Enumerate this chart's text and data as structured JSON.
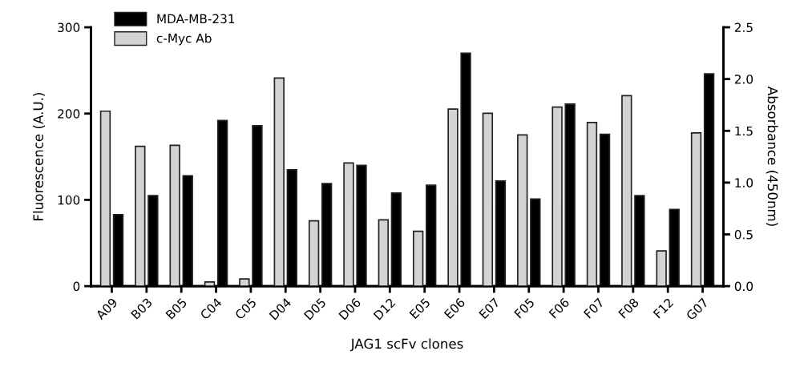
{
  "chart_data": {
    "type": "bar",
    "xlabel": "JAG1 scFv clones",
    "ylabel": "Fluorescence (A.U.)",
    "y2label": "Absorbance (450nm)",
    "categories": [
      "A09",
      "B03",
      "B05",
      "C04",
      "C05",
      "D04",
      "D05",
      "D06",
      "D12",
      "E05",
      "E06",
      "E07",
      "F05",
      "F06",
      "F07",
      "F08",
      "F12",
      "G07"
    ],
    "series": [
      {
        "name": "c-Myc Ab",
        "color": "#d3d3d3",
        "axis": "y2",
        "values": [
          1.69,
          1.35,
          1.36,
          0.04,
          0.07,
          2.01,
          0.63,
          1.19,
          0.64,
          0.53,
          1.71,
          1.67,
          1.46,
          1.73,
          1.58,
          1.84,
          0.34,
          1.48
        ]
      },
      {
        "name": "MDA-MB-231",
        "color": "#000000",
        "values": [
          83,
          105,
          128,
          192,
          186,
          135,
          119,
          140,
          108,
          117,
          270,
          122,
          101,
          211,
          176,
          105,
          89,
          246
        ]
      }
    ],
    "ylim": [
      0,
      300
    ],
    "yticks": [
      0,
      100,
      200,
      300
    ],
    "y2lim": [
      0,
      2.5
    ],
    "y2ticks": [
      {
        "value": 0,
        "label": "0.0"
      },
      {
        "value": 0.5,
        "label": "0.5"
      },
      {
        "value": 1,
        "label": "1.0"
      },
      {
        "value": 1.5,
        "label": "1.5"
      },
      {
        "value": 2,
        "label": "2.0"
      },
      {
        "value": 2.5,
        "label": "2.5"
      }
    ],
    "grid": false,
    "legend": "top left"
  }
}
